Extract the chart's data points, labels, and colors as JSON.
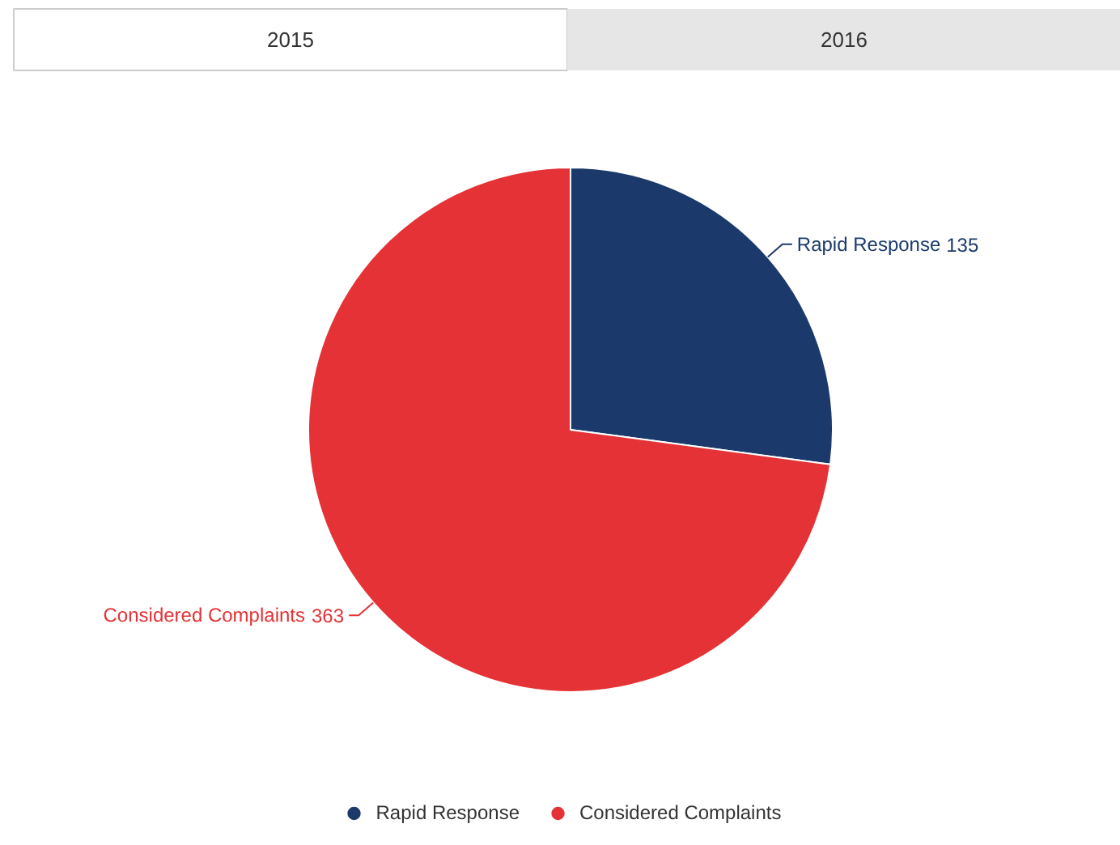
{
  "chart_data": {
    "type": "pie",
    "annotations": [
      "2015",
      "2016"
    ],
    "categories": [
      "Rapid Response",
      "Considered Complaints"
    ],
    "values": [
      135,
      363
    ],
    "colors": [
      "#1b3a6b",
      "#e53236"
    ],
    "data_labels": true,
    "legend": "bottom"
  }
}
